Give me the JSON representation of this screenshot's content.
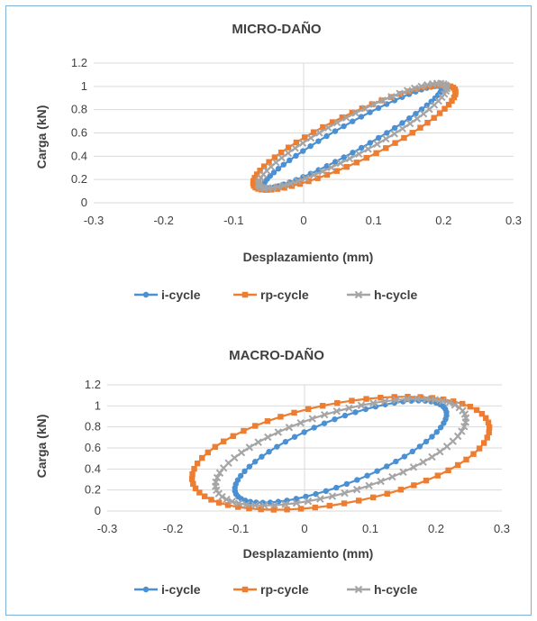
{
  "chart_data": [
    {
      "type": "scatter",
      "title": "MICRO-DAÑO",
      "xlabel": "Desplazamiento (mm)",
      "ylabel": "Carga (kN)",
      "xlim": [
        -0.3,
        0.3
      ],
      "ylim": [
        0,
        1.2
      ],
      "xticks": [
        "-0.3",
        "-0.2",
        "-0.1",
        "0",
        "0.1",
        "0.2",
        "0.3"
      ],
      "yticks": [
        "0",
        "0.2",
        "0.4",
        "0.6",
        "0.8",
        "1",
        "1.2"
      ],
      "grid": true,
      "legend_position": "bottom",
      "series": [
        {
          "name": "i-cycle",
          "color": "#4a90d2",
          "marker": "circle",
          "loop": {
            "x_min": -0.055,
            "x_max": 0.195,
            "y_min": 0.13,
            "y_max": 1.0,
            "width": 0.05
          }
        },
        {
          "name": "rp-cycle",
          "color": "#ed7d31",
          "marker": "square",
          "loop": {
            "x_min": -0.065,
            "x_max": 0.21,
            "y_min": 0.12,
            "y_max": 1.0,
            "width": 0.09
          }
        },
        {
          "name": "h-cycle",
          "color": "#a5a5a5",
          "marker": "cross",
          "loop": {
            "x_min": -0.06,
            "x_max": 0.2,
            "y_min": 0.13,
            "y_max": 1.02,
            "width": 0.07
          }
        }
      ]
    },
    {
      "type": "scatter",
      "title": "MACRO-DAÑO",
      "xlabel": "Desplazamiento (mm)",
      "ylabel": "Carga (kN)",
      "xlim": [
        -0.3,
        0.3
      ],
      "ylim": [
        0,
        1.2
      ],
      "xticks": [
        "-0.3",
        "-0.2",
        "-0.1",
        "0",
        "0.1",
        "0.2",
        "0.3"
      ],
      "yticks": [
        "0",
        "0.2",
        "0.4",
        "0.6",
        "0.8",
        "1",
        "1.2"
      ],
      "grid": true,
      "legend_position": "bottom",
      "series": [
        {
          "name": "i-cycle",
          "color": "#4a90d2",
          "marker": "circle",
          "loop": {
            "x_min": -0.09,
            "x_max": 0.2,
            "y_min": 0.1,
            "y_max": 1.03,
            "width": 0.14
          }
        },
        {
          "name": "rp-cycle",
          "color": "#ed7d31",
          "marker": "square",
          "loop": {
            "x_min": -0.13,
            "x_max": 0.24,
            "y_min": 0.08,
            "y_max": 1.02,
            "width": 0.26
          }
        },
        {
          "name": "h-cycle",
          "color": "#a5a5a5",
          "marker": "cross",
          "loop": {
            "x_min": -0.11,
            "x_max": 0.22,
            "y_min": 0.09,
            "y_max": 1.03,
            "width": 0.19
          }
        }
      ]
    }
  ]
}
